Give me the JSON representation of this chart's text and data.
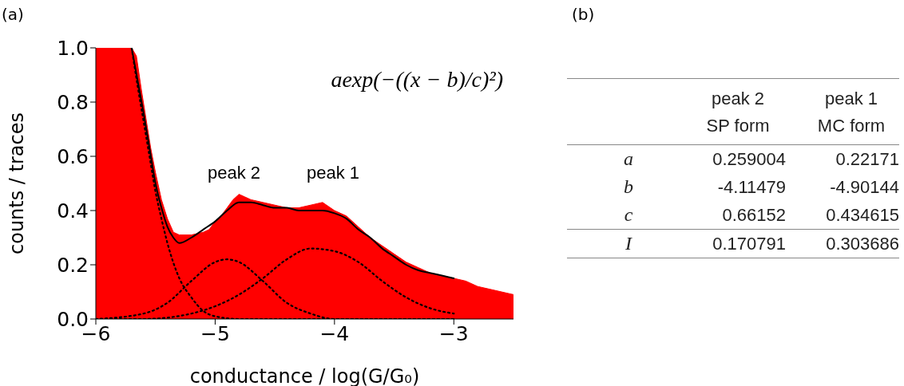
{
  "chart_data": [
    {
      "type": "area",
      "title": "(a)",
      "xlabel": "conductance / log(G/G₀)",
      "ylabel": "counts / traces",
      "xlim": [
        -6,
        -2.5
      ],
      "xticks": [
        -6,
        -5,
        -4,
        -3
      ],
      "ylim": [
        0,
        1
      ],
      "yticks": [
        {
          "value": 0,
          "label": "0.0"
        },
        0.2,
        0.4,
        0.6,
        0.8,
        {
          "value": 1,
          "label": "1.0"
        }
      ],
      "grid": false,
      "legend": false,
      "annotations": [
        "peak 2",
        "peak 1",
        "aexp(−((x − b)/c)²)"
      ],
      "series": [
        {
          "type": "area",
          "color": "#ff0000",
          "x": [
            -6,
            -5.8,
            -5.7,
            -5.66,
            -5.62,
            -5.58,
            -5.54,
            -5.5,
            -5.45,
            -5.4,
            -5.35,
            -5.3,
            -5.2,
            -5.1,
            -5.05,
            -5.0,
            -4.95,
            -4.9,
            -4.85,
            -4.8,
            -4.75,
            -4.7,
            -4.6,
            -4.5,
            -4.4,
            -4.3,
            -4.2,
            -4.1,
            -4.0,
            -3.9,
            -3.8,
            -3.7,
            -3.6,
            -3.5,
            -3.4,
            -3.3,
            -3.2,
            -3.1,
            -3.0,
            -2.9,
            -2.8,
            -2.7,
            -2.6,
            -2.5
          ],
          "values": [
            1.0,
            1.0,
            1.0,
            0.97,
            0.85,
            0.74,
            0.63,
            0.54,
            0.44,
            0.37,
            0.32,
            0.31,
            0.31,
            0.32,
            0.33,
            0.36,
            0.38,
            0.41,
            0.44,
            0.46,
            0.45,
            0.44,
            0.43,
            0.42,
            0.41,
            0.41,
            0.42,
            0.43,
            0.4,
            0.38,
            0.34,
            0.3,
            0.27,
            0.24,
            0.21,
            0.19,
            0.17,
            0.16,
            0.15,
            0.14,
            0.12,
            0.11,
            0.1,
            0.09
          ]
        },
        {
          "type": "line",
          "color": "#000000",
          "line_style": "solid",
          "x": [
            -5.7,
            -5.65,
            -5.6,
            -5.55,
            -5.5,
            -5.45,
            -5.4,
            -5.35,
            -5.3,
            -5.2,
            -5.1,
            -5.0,
            -4.9,
            -4.8,
            -4.7,
            -4.6,
            -4.5,
            -4.4,
            -4.3,
            -4.2,
            -4.1,
            -4.0,
            -3.9,
            -3.8,
            -3.7,
            -3.6,
            -3.5,
            -3.4,
            -3.3,
            -3.2,
            -3.1,
            -3.0
          ],
          "values": [
            1.0,
            0.88,
            0.76,
            0.63,
            0.5,
            0.41,
            0.34,
            0.3,
            0.28,
            0.3,
            0.33,
            0.36,
            0.4,
            0.43,
            0.43,
            0.42,
            0.41,
            0.41,
            0.4,
            0.4,
            0.4,
            0.39,
            0.37,
            0.33,
            0.3,
            0.26,
            0.23,
            0.2,
            0.18,
            0.17,
            0.16,
            0.15
          ]
        },
        {
          "type": "line",
          "color": "#000000",
          "line_style": "dotted",
          "x": [
            -5.7,
            -5.65,
            -5.6,
            -5.55,
            -5.5,
            -5.45,
            -5.4,
            -5.3,
            -5.2,
            -5.1,
            -5.0,
            -4.8,
            -3.0
          ],
          "values": [
            1.0,
            0.86,
            0.73,
            0.6,
            0.47,
            0.37,
            0.28,
            0.15,
            0.08,
            0.03,
            0.01,
            0.0,
            0.0
          ]
        },
        {
          "type": "line",
          "color": "#000000",
          "line_style": "dotted",
          "x": [
            -6,
            -5.6,
            -5.4,
            -5.2,
            -5.0,
            -4.9,
            -4.8,
            -4.6,
            -4.4,
            -4.2,
            -4.0,
            -3.8,
            -3.0
          ],
          "values": [
            0.0,
            0.02,
            0.06,
            0.14,
            0.21,
            0.22,
            0.21,
            0.14,
            0.06,
            0.02,
            0.0,
            0.0,
            0.0
          ]
        },
        {
          "type": "line",
          "color": "#000000",
          "line_style": "dotted",
          "x": [
            -6,
            -5.6,
            -5.2,
            -4.8,
            -4.6,
            -4.4,
            -4.2,
            -4.0,
            -3.8,
            -3.6,
            -3.4,
            -3.2,
            -3.0
          ],
          "values": [
            0.0,
            0.0,
            0.02,
            0.09,
            0.15,
            0.22,
            0.26,
            0.25,
            0.21,
            0.14,
            0.08,
            0.04,
            0.02
          ]
        }
      ]
    },
    {
      "type": "other",
      "title": "(b)",
      "categories": [
        "peak 2\nSP form",
        "peak 1\nMC form"
      ],
      "y_categories": [
        "a",
        "b",
        "c",
        "I"
      ],
      "cell_labels": [
        [
          "0.259004",
          "0.22171"
        ],
        [
          "-4.11479",
          "-4.90144"
        ],
        [
          "0.66152",
          "0.434615"
        ],
        [
          "0.170791",
          "0.303686"
        ]
      ]
    }
  ]
}
